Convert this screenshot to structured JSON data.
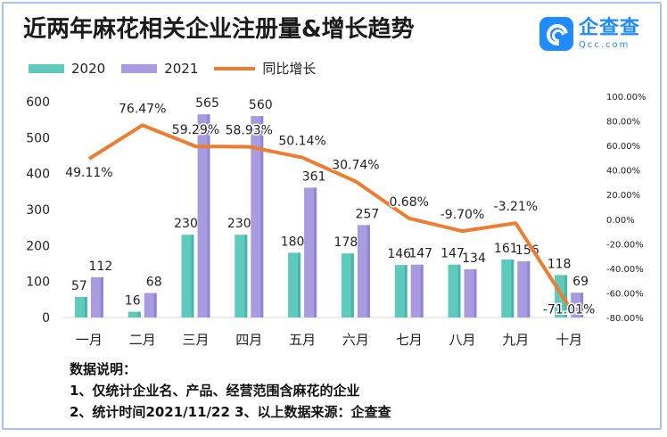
{
  "title": "近两年麻花相关企业注册量&增长趋势",
  "logo": {
    "name": "企查查",
    "domain": "Qcc.com"
  },
  "legend": {
    "series_2020": "2020",
    "series_2021": "2021",
    "series_growth": "同比增长"
  },
  "notes": {
    "heading": "数据说明：",
    "line1": "1、仅统计企业名、产品、经营范围含麻花的企业",
    "line2": "2、统计时间2021/11/22   3、以上数据来源：企查查"
  },
  "colors": {
    "bar2020": "#5ec9bd",
    "bar2021": "#a99be0",
    "growth": "#ed7d31"
  },
  "chart_data": {
    "type": "bar",
    "categories": [
      "一月",
      "二月",
      "三月",
      "四月",
      "五月",
      "六月",
      "七月",
      "八月",
      "九月",
      "十月"
    ],
    "series": [
      {
        "name": "2020",
        "values": [
          57,
          16,
          230,
          230,
          180,
          178,
          146,
          147,
          161,
          118
        ]
      },
      {
        "name": "2021",
        "values": [
          112,
          68,
          565,
          560,
          361,
          257,
          147,
          134,
          156,
          69
        ]
      }
    ],
    "line_series": {
      "name": "同比增长",
      "values": [
        49.11,
        76.47,
        59.29,
        58.93,
        50.14,
        30.74,
        0.68,
        -9.7,
        -3.21,
        -71.01
      ],
      "labels": [
        "49.11%",
        "76.47%",
        "59.29%",
        "58.93%",
        "50.14%",
        "30.74%",
        "0.68%",
        "-9.70%",
        "-3.21%",
        "-71.01%"
      ]
    },
    "y_left": {
      "ylim": [
        0,
        600
      ],
      "ticks": [
        "0",
        "100",
        "200",
        "300",
        "400",
        "500",
        "600"
      ]
    },
    "y_right": {
      "ylim": [
        -80,
        100
      ],
      "ticks": [
        "-80.00%",
        "-60.00%",
        "-40.00%",
        "-20.00%",
        "0.00%",
        "20.00%",
        "40.00%",
        "60.00%",
        "80.00%",
        "100.00%"
      ]
    },
    "grid": false,
    "legend_position": "top-left"
  }
}
